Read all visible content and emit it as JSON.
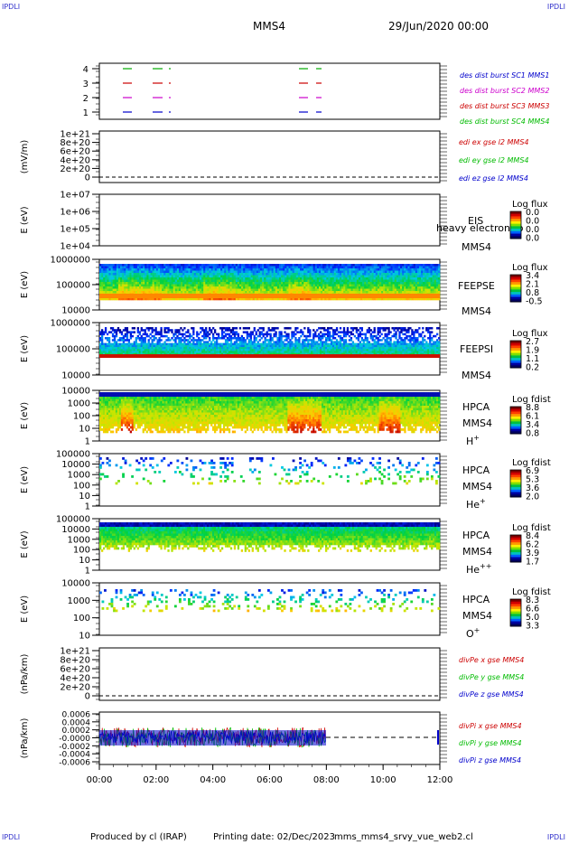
{
  "corner_text": "IPDLI",
  "header": {
    "spacecraft": "MMS4",
    "date_time": "29/Jun/2020 00:00"
  },
  "footer": {
    "produced_by": "Produced by cl (IRAP)",
    "printing_date": "Printing date: 02/Dec/2023",
    "script_name": "mms_mms4_srvy_vue_web2.cl"
  },
  "colors": {
    "sc1": "#00aa00",
    "sc2": "#cc0000",
    "sc3": "#cc00cc",
    "sc4": "#0000cc",
    "x": "#cc0000",
    "y": "#00bb00",
    "z": "#0000cc"
  },
  "chart_data": [
    {
      "type": "line",
      "panel": "burst",
      "yticks": [
        "1",
        "2",
        "3",
        "4"
      ],
      "labels": [
        {
          "text": "des dist burst SC1 MMS1",
          "color": "#0000cc"
        },
        {
          "text": "des dist burst SC2 MMS2",
          "color": "#cc00cc"
        },
        {
          "text": "des dist burst SC3 MMS3",
          "color": "#cc0000"
        },
        {
          "text": "des dist burst SC4 MMS4",
          "color": "#00bb00"
        }
      ]
    },
    {
      "type": "line",
      "panel": "edi",
      "ylabel": "(mV/m)",
      "yticks": [
        "1e+21",
        "8e+20",
        "6e+20",
        "4e+20",
        "2e+20",
        "0"
      ],
      "labels": [
        {
          "text": "edi ex gse l2 MMS4",
          "color": "#cc0000"
        },
        {
          "text": "edi ey gse l2 MMS4",
          "color": "#00bb00"
        },
        {
          "text": "edi ez gse l2 MMS4",
          "color": "#0000cc"
        }
      ]
    },
    {
      "type": "heatmap",
      "panel": "eis",
      "ylabel": "E (eV)",
      "yticks": [
        "1e+07",
        "1e+06",
        "1e+05",
        "1e+04"
      ],
      "instrument": "EIS",
      "species": "heavy electron to",
      "sc": "MMS4",
      "colorbar_title": "Log flux",
      "colorbar_ticks": [
        "0.0",
        "0.0",
        "0.0",
        "0.0"
      ]
    },
    {
      "type": "heatmap",
      "panel": "feepse",
      "ylabel": "E (eV)",
      "yticks": [
        "1000000",
        "100000",
        "10000"
      ],
      "instrument": "FEEPSE",
      "sc": "MMS4",
      "colorbar_title": "Log flux",
      "colorbar_ticks": [
        "3.4",
        "2.1",
        "0.8",
        "-0.5"
      ]
    },
    {
      "type": "heatmap",
      "panel": "feepsi",
      "ylabel": "E (eV)",
      "yticks": [
        "1000000",
        "100000",
        "10000"
      ],
      "instrument": "FEEPSI",
      "sc": "MMS4",
      "colorbar_title": "Log flux",
      "colorbar_ticks": [
        "2.7",
        "1.9",
        "1.1",
        "0.2"
      ]
    },
    {
      "type": "heatmap",
      "panel": "hpca_h",
      "ylabel": "E (eV)",
      "yticks": [
        "10000",
        "1000",
        "100",
        "10",
        "1"
      ],
      "instrument": "HPCA",
      "sc": "MMS4",
      "ion": "H",
      "ion_charge": "+",
      "colorbar_title": "Log fdist",
      "colorbar_ticks": [
        "8.8",
        "6.1",
        "3.4",
        "0.8"
      ]
    },
    {
      "type": "heatmap",
      "panel": "hpca_he",
      "ylabel": "E (eV)",
      "yticks": [
        "100000",
        "10000",
        "1000",
        "100",
        "10",
        "1"
      ],
      "instrument": "HPCA",
      "sc": "MMS4",
      "ion": "He",
      "ion_charge": "+",
      "colorbar_title": "Log fdist",
      "colorbar_ticks": [
        "6.9",
        "5.3",
        "3.6",
        "2.0"
      ]
    },
    {
      "type": "heatmap",
      "panel": "hpca_hepp",
      "ylabel": "E (eV)",
      "yticks": [
        "100000",
        "10000",
        "1000",
        "100",
        "10",
        "1"
      ],
      "instrument": "HPCA",
      "sc": "MMS4",
      "ion": "He",
      "ion_charge": "++",
      "colorbar_title": "Log fdist",
      "colorbar_ticks": [
        "8.4",
        "6.2",
        "3.9",
        "1.7"
      ]
    },
    {
      "type": "heatmap",
      "panel": "hpca_o",
      "ylabel": "E (eV)",
      "yticks": [
        "10000",
        "1000",
        "100",
        "10"
      ],
      "instrument": "HPCA",
      "sc": "MMS4",
      "ion": "O",
      "ion_charge": "+",
      "colorbar_title": "Log fdist",
      "colorbar_ticks": [
        "8.3",
        "6.6",
        "5.0",
        "3.3"
      ]
    },
    {
      "type": "line",
      "panel": "divpe",
      "ylabel": "(nPa/km)",
      "yticks": [
        "1e+21",
        "8e+20",
        "6e+20",
        "4e+20",
        "2e+20",
        "0"
      ],
      "labels": [
        {
          "text": "divPe x gse MMS4",
          "color": "#cc0000"
        },
        {
          "text": "divPe y gse MMS4",
          "color": "#00bb00"
        },
        {
          "text": "divPe z gse MMS4",
          "color": "#0000cc"
        }
      ]
    },
    {
      "type": "line",
      "panel": "divpi",
      "ylabel": "(nPa/km)",
      "yticks": [
        "0.0006",
        "0.0004",
        "0.0002",
        "-0.0000",
        "-0.0002",
        "-0.0004",
        "-0.0006"
      ],
      "labels": [
        {
          "text": "divPi x gse MMS4",
          "color": "#cc0000"
        },
        {
          "text": "divPi y gse MMS4",
          "color": "#00bb00"
        },
        {
          "text": "divPi z gse MMS4",
          "color": "#0000cc"
        }
      ]
    }
  ],
  "time_axis": {
    "ticks": [
      "00:00",
      "02:00",
      "04:00",
      "06:00",
      "08:00",
      "10:00",
      "12:00"
    ]
  }
}
